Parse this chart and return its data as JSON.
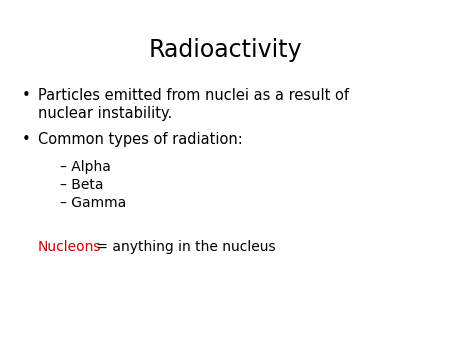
{
  "title": "Radioactivity",
  "background_color": "#ffffff",
  "title_fontsize": 17,
  "title_color": "#000000",
  "title_font": "DejaVu Sans",
  "bullet_color": "#000000",
  "bullet_fontsize": 10.5,
  "sub_fontsize": 10,
  "nucleons_red": "#cc0000",
  "nucleons_black": "#000000",
  "bullet1_line1": "Particles emitted from nuclei as a result of",
  "bullet1_line2": "nuclear instability.",
  "bullet2": "Common types of radiation:",
  "sub1": "– Alpha",
  "sub2": "– Beta",
  "sub3": "– Gamma",
  "nucleons_text_red": "Nucleons",
  "nucleons_text_black": " = anything in the nucleus"
}
